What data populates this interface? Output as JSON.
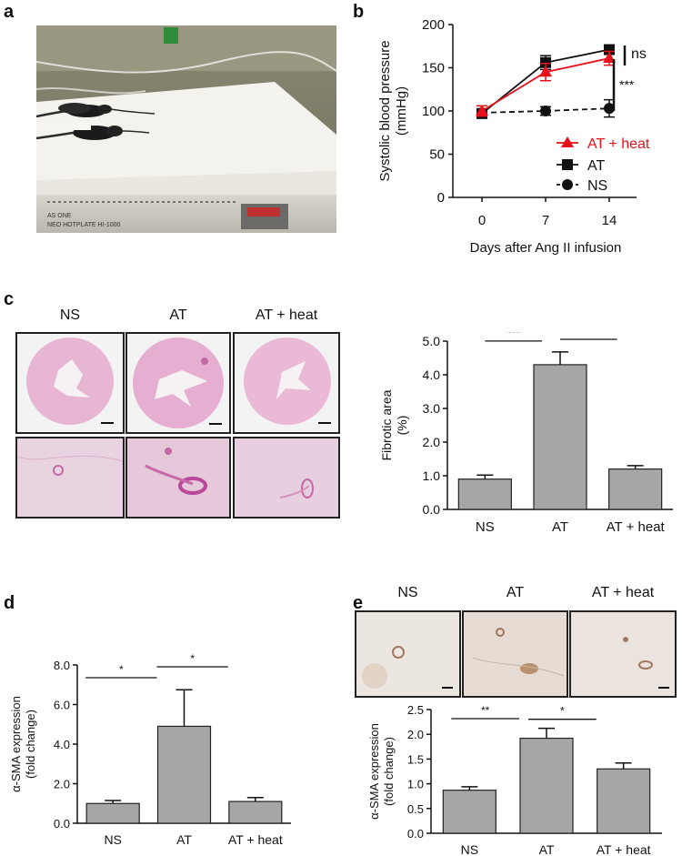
{
  "panels": {
    "a": "a",
    "b": "b",
    "c": "c",
    "d": "d",
    "e": "e"
  },
  "panel_a": {
    "device_brand": "AS ONE",
    "device_model": "NEO HOTPLATE HI-1000"
  },
  "panel_c": {
    "column_headers": [
      "NS",
      "AT",
      "AT + heat"
    ]
  },
  "panel_e": {
    "column_headers": [
      "NS",
      "AT",
      "AT + heat"
    ]
  },
  "colors": {
    "at_heat": "#e8101a",
    "at": "#111111",
    "ns": "#111111",
    "bar_fill": "#a6a6a6"
  },
  "chart_data": [
    {
      "id": "b",
      "type": "line",
      "ylabel": "Systolic blood pressure (mmHg)",
      "ylabel_lines": [
        "Systolic blood pressure",
        "(mmHg)"
      ],
      "xlabel": "Days after Ang II infusion",
      "x": [
        0,
        7,
        14
      ],
      "x_ticks": [
        "0",
        "7",
        "14"
      ],
      "ylim": [
        0,
        200
      ],
      "y_ticks": [
        "0",
        "50",
        "100",
        "150",
        "200"
      ],
      "legend_position": "right",
      "series": [
        {
          "name": "AT + heat",
          "values": [
            100,
            145,
            161
          ],
          "err": [
            6,
            10,
            8
          ],
          "style": "solid",
          "marker": "triangle"
        },
        {
          "name": "AT",
          "values": [
            97,
            156,
            171
          ],
          "err": [
            4,
            8,
            5
          ],
          "style": "solid",
          "marker": "square"
        },
        {
          "name": "NS",
          "values": [
            98,
            100,
            103
          ],
          "err": [
            4,
            5,
            10
          ],
          "style": "dashed",
          "marker": "circle"
        }
      ],
      "annotations": [
        {
          "text": "ns"
        },
        {
          "text": "***"
        }
      ]
    },
    {
      "id": "c",
      "type": "bar",
      "ylabel": "Fibrotic area (%)",
      "ylabel_lines": [
        "Fibrotic area",
        "(%)"
      ],
      "categories": [
        "NS",
        "AT",
        "AT + heat"
      ],
      "values": [
        0.9,
        4.3,
        1.2
      ],
      "err": [
        0.12,
        0.38,
        0.1
      ],
      "ylim": [
        0,
        5
      ],
      "y_ticks": [
        "0.0",
        "1.0",
        "2.0",
        "3.0",
        "4.0",
        "5.0"
      ],
      "significance": [
        {
          "from": 0,
          "to": 1,
          "text": "***"
        },
        {
          "from": 1,
          "to": 2,
          "text": "***"
        }
      ]
    },
    {
      "id": "d",
      "type": "bar",
      "ylabel": "α-SMA expression (fold change)",
      "ylabel_lines": [
        "α-SMA expression",
        "(fold change)"
      ],
      "categories": [
        "NS",
        "AT",
        "AT + heat"
      ],
      "values": [
        1.0,
        4.9,
        1.1
      ],
      "err": [
        0.15,
        1.85,
        0.2
      ],
      "ylim": [
        0,
        8
      ],
      "y_ticks": [
        "0.0",
        "2.0",
        "4.0",
        "6.0",
        "8.0"
      ],
      "significance": [
        {
          "from": 0,
          "to": 1,
          "text": "*"
        },
        {
          "from": 1,
          "to": 2,
          "text": "*"
        }
      ]
    },
    {
      "id": "e",
      "type": "bar",
      "ylabel": "α-SMA expression (fold change)",
      "ylabel_lines": [
        "α-SMA expression",
        "(fold change)"
      ],
      "categories": [
        "NS",
        "AT",
        "AT + heat"
      ],
      "values": [
        0.87,
        1.92,
        1.3
      ],
      "err": [
        0.07,
        0.2,
        0.12
      ],
      "ylim": [
        0,
        2.5
      ],
      "y_ticks": [
        "0.0",
        "0.5",
        "1.0",
        "1.5",
        "2.0",
        "2.5"
      ],
      "significance": [
        {
          "from": 0,
          "to": 1,
          "text": "**"
        },
        {
          "from": 1,
          "to": 2,
          "text": "*"
        }
      ]
    }
  ]
}
